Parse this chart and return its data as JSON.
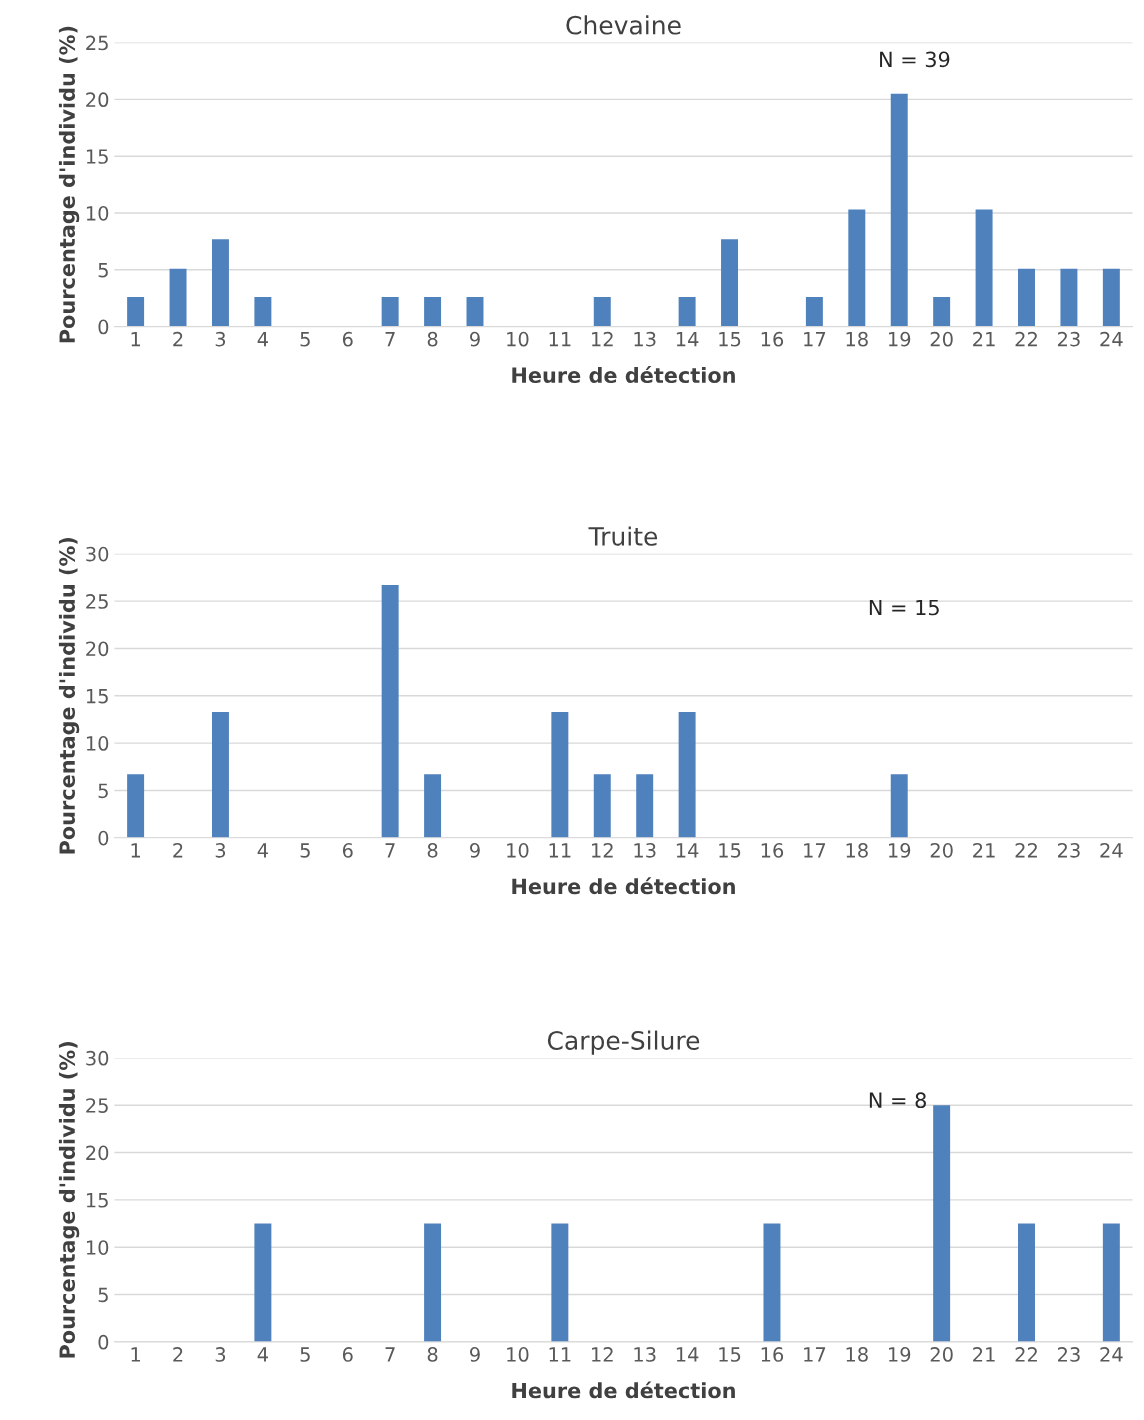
{
  "chart_data": [
    {
      "type": "bar",
      "title": "Chevaine",
      "xlabel": "Heure de détection",
      "ylabel": "Pourcentage d'individu (%)",
      "categories": [
        "1",
        "2",
        "3",
        "4",
        "5",
        "6",
        "7",
        "8",
        "9",
        "10",
        "11",
        "12",
        "13",
        "14",
        "15",
        "16",
        "17",
        "18",
        "19",
        "20",
        "21",
        "22",
        "23",
        "24"
      ],
      "series": [
        {
          "color": "#4f81bd",
          "values": [
            2.6,
            5.1,
            7.7,
            2.6,
            0,
            0,
            2.6,
            2.6,
            2.6,
            0,
            0,
            2.6,
            0,
            2.6,
            7.7,
            0,
            2.6,
            10.3,
            20.5,
            2.6,
            10.3,
            5.1,
            5.1,
            5.1
          ]
        }
      ],
      "ylim": [
        0,
        25
      ],
      "yticks": [
        0,
        5,
        10,
        15,
        20,
        25
      ],
      "grid": "y",
      "annotations": [
        "N = 39"
      ]
    },
    {
      "type": "bar",
      "title": "Truite",
      "xlabel": "Heure de détection",
      "ylabel": "Pourcentage d'individu (%)",
      "categories": [
        "1",
        "2",
        "3",
        "4",
        "5",
        "6",
        "7",
        "8",
        "9",
        "10",
        "11",
        "12",
        "13",
        "14",
        "15",
        "16",
        "17",
        "18",
        "19",
        "20",
        "21",
        "22",
        "23",
        "24"
      ],
      "series": [
        {
          "color": "#4f81bd",
          "values": [
            6.7,
            0,
            13.3,
            0,
            0,
            0,
            26.7,
            6.7,
            0,
            0,
            13.3,
            6.7,
            6.7,
            13.3,
            0,
            0,
            0,
            0,
            6.7,
            0,
            0,
            0,
            0,
            0
          ]
        }
      ],
      "ylim": [
        0,
        30
      ],
      "yticks": [
        0,
        5,
        10,
        15,
        20,
        25,
        30
      ],
      "grid": "y",
      "annotations": [
        "N = 15"
      ]
    },
    {
      "type": "bar",
      "title": "Carpe-Silure",
      "xlabel": "Heure de détection",
      "ylabel": "Pourcentage d'individu (%)",
      "categories": [
        "1",
        "2",
        "3",
        "4",
        "5",
        "6",
        "7",
        "8",
        "9",
        "10",
        "11",
        "12",
        "13",
        "14",
        "15",
        "16",
        "17",
        "18",
        "19",
        "20",
        "21",
        "22",
        "23",
        "24"
      ],
      "series": [
        {
          "color": "#4f81bd",
          "values": [
            0,
            0,
            0,
            12.5,
            0,
            0,
            0,
            12.5,
            0,
            0,
            12.5,
            0,
            0,
            0,
            0,
            12.5,
            0,
            0,
            0,
            25,
            0,
            12.5,
            0,
            12.5
          ]
        }
      ],
      "ylim": [
        0,
        30
      ],
      "yticks": [
        0,
        5,
        10,
        15,
        20,
        25,
        30
      ],
      "grid": "y",
      "annotations": [
        "N = 8"
      ]
    }
  ]
}
